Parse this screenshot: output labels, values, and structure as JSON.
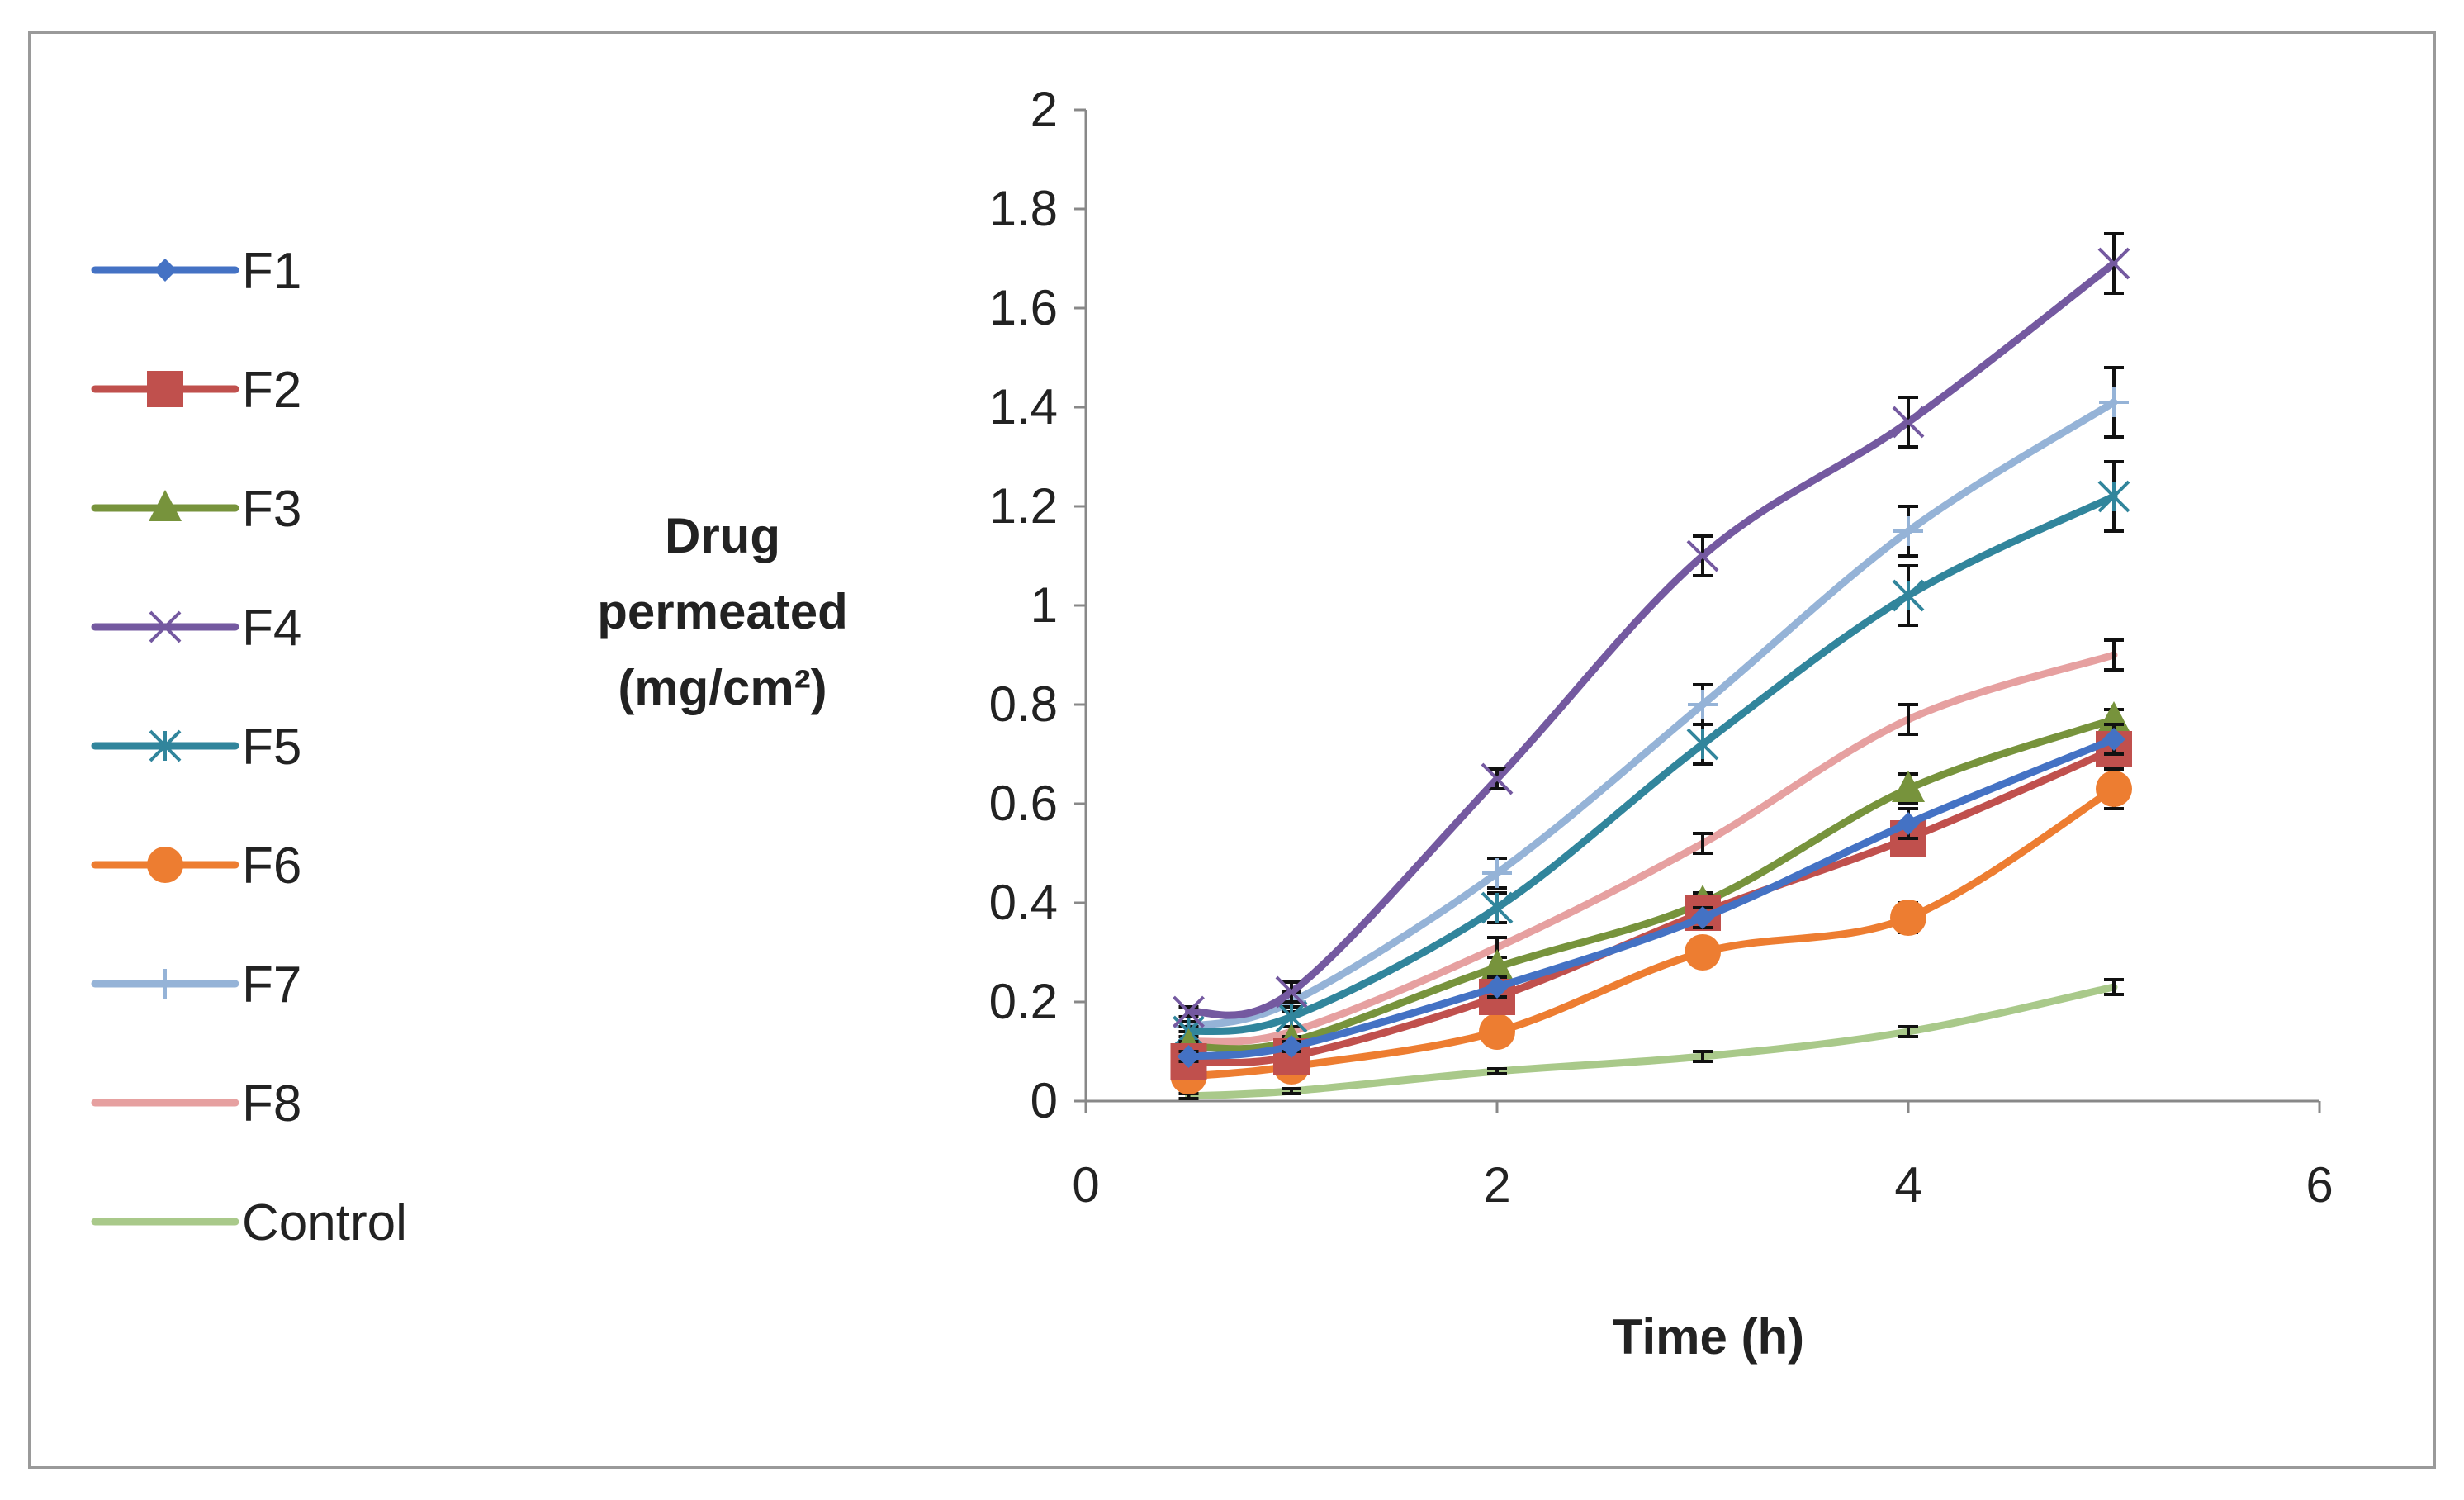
{
  "chart_data": {
    "type": "line",
    "title": "",
    "xlabel": "Time (h)",
    "ylabel_lines": [
      "Drug",
      "permeated",
      "(mg/cm²)"
    ],
    "xlim": [
      0,
      6
    ],
    "ylim": [
      0,
      2
    ],
    "xticks": [
      0,
      2,
      4,
      6
    ],
    "yticks": [
      0,
      0.2,
      0.4,
      0.6,
      0.8,
      1,
      1.2,
      1.4,
      1.6,
      1.8,
      2
    ],
    "ytick_labels": [
      "0",
      "0.2",
      "0.4",
      "0.6",
      "0.8",
      "1",
      "1.2",
      "1.4",
      "1.6",
      "1.8",
      "2"
    ],
    "xtick_labels": [
      "0",
      "2",
      "4",
      "6"
    ],
    "legend_position": "left",
    "x": [
      0.5,
      1,
      2,
      3,
      4,
      5
    ],
    "series": [
      {
        "name": "F1",
        "color": "#4472c4",
        "marker": "diamond",
        "values": [
          0.09,
          0.11,
          0.23,
          0.37,
          0.56,
          0.73
        ],
        "errors": [
          0.01,
          0.01,
          0.02,
          0.02,
          0.03,
          0.03
        ]
      },
      {
        "name": "F2",
        "color": "#c0504d",
        "marker": "square",
        "values": [
          0.08,
          0.09,
          0.21,
          0.38,
          0.53,
          0.71
        ],
        "errors": [
          0.01,
          0.01,
          0.02,
          0.02,
          0.03,
          0.03
        ]
      },
      {
        "name": "F3",
        "color": "#77933c",
        "marker": "triangle",
        "values": [
          0.11,
          0.12,
          0.27,
          0.4,
          0.63,
          0.77
        ],
        "errors": [
          0.01,
          0.01,
          0.02,
          0.02,
          0.03,
          0.02
        ]
      },
      {
        "name": "F4",
        "color": "#7459a0",
        "marker": "x",
        "values": [
          0.18,
          0.22,
          0.65,
          1.1,
          1.37,
          1.69
        ],
        "errors": [
          0.01,
          0.02,
          0.02,
          0.04,
          0.05,
          0.06
        ]
      },
      {
        "name": "F5",
        "color": "#31859c",
        "marker": "asterisk",
        "values": [
          0.14,
          0.17,
          0.39,
          0.72,
          1.02,
          1.22
        ],
        "errors": [
          0.01,
          0.02,
          0.03,
          0.04,
          0.06,
          0.07
        ]
      },
      {
        "name": "F6",
        "color": "#ed7d31",
        "marker": "circle",
        "values": [
          0.05,
          0.07,
          0.14,
          0.3,
          0.37,
          0.63
        ],
        "errors": [
          0.01,
          0.01,
          0.02,
          0.02,
          0.03,
          0.04
        ]
      },
      {
        "name": "F7",
        "color": "#95b3d7",
        "marker": "plus",
        "values": [
          0.15,
          0.2,
          0.46,
          0.8,
          1.15,
          1.41
        ],
        "errors": [
          0.01,
          0.02,
          0.03,
          0.04,
          0.05,
          0.07
        ]
      },
      {
        "name": "F8",
        "color": "#e6a0a0",
        "marker": "none",
        "values": [
          0.12,
          0.14,
          0.31,
          0.52,
          0.77,
          0.9
        ],
        "errors": [
          0.01,
          0.01,
          0.02,
          0.02,
          0.03,
          0.03
        ]
      },
      {
        "name": "Control",
        "color": "#a9c98a",
        "marker": "none",
        "values": [
          0.01,
          0.02,
          0.06,
          0.09,
          0.14,
          0.23
        ],
        "errors": [
          0.005,
          0.005,
          0.005,
          0.01,
          0.01,
          0.015
        ]
      }
    ]
  }
}
